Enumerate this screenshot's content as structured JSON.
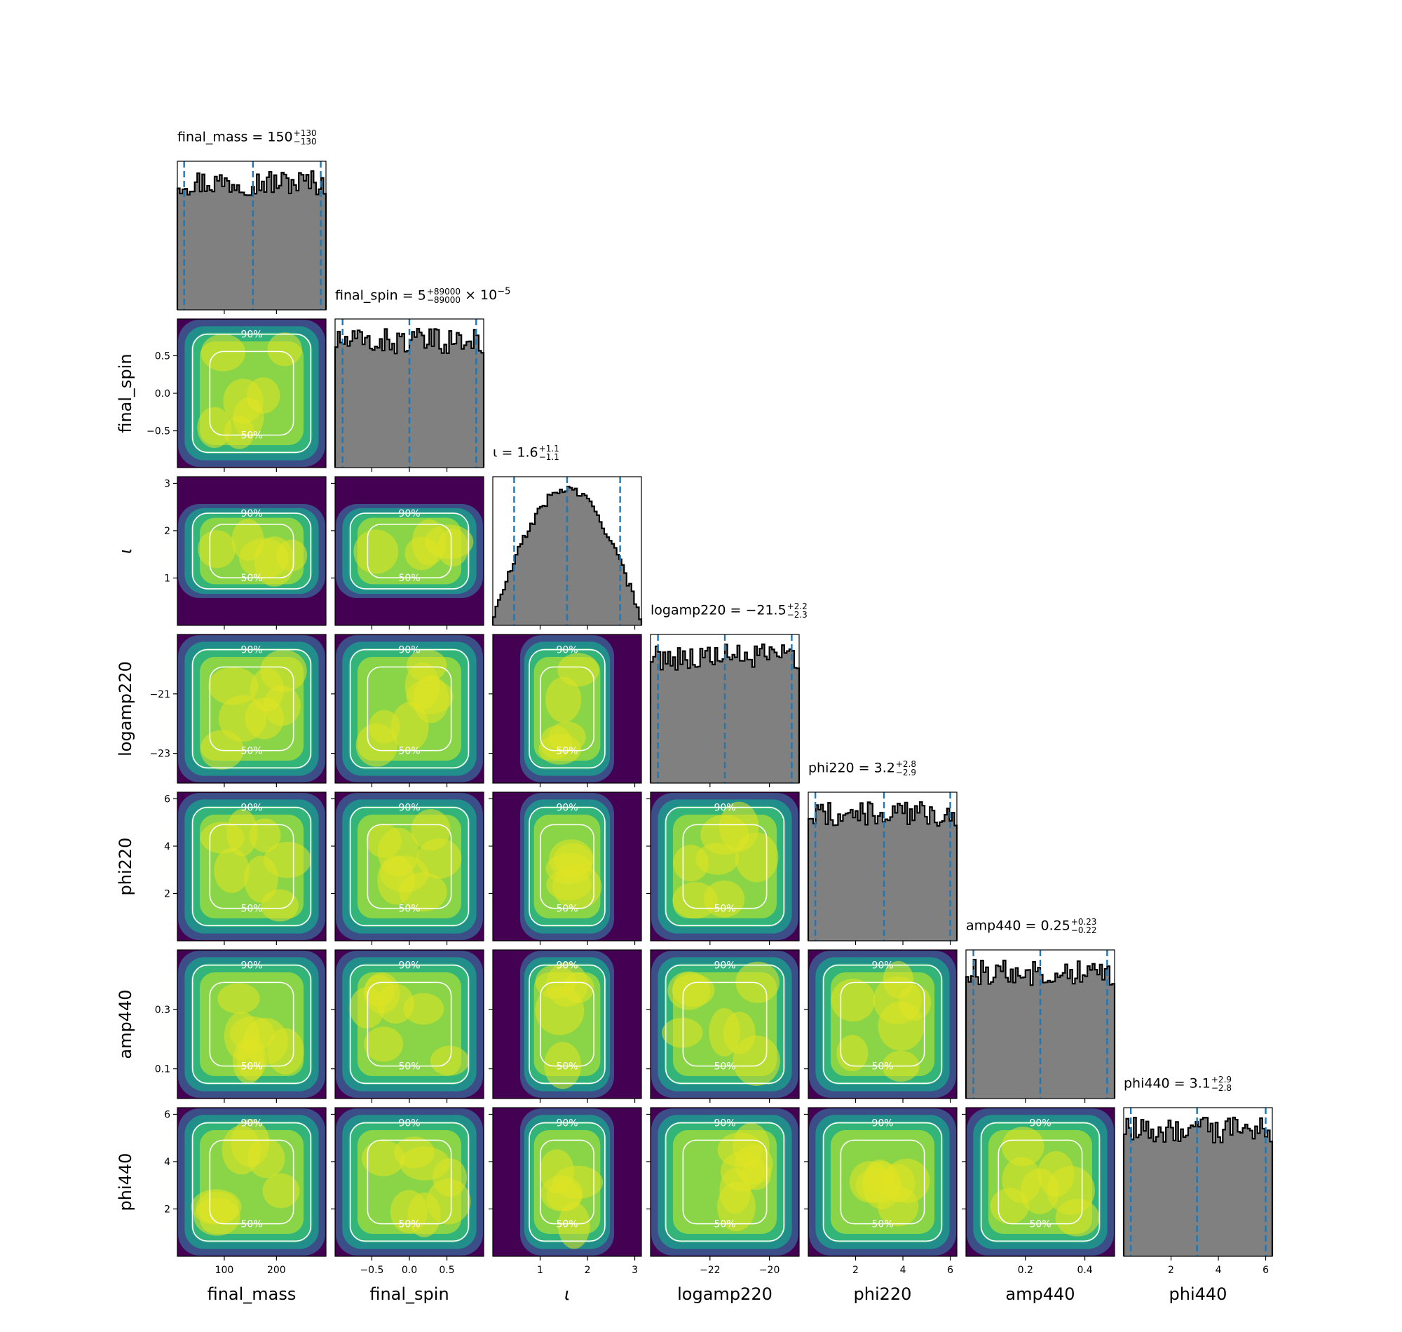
{
  "chart_data": {
    "type": "corner",
    "parameters": [
      {
        "name": "final_mass",
        "label": "final_mass",
        "range": [
          10,
          295
        ],
        "ticks": [
          100,
          200
        ],
        "tick_labels": [
          "100",
          "200"
        ],
        "summary": {
          "median": "150",
          "plus": "+130",
          "minus": "−130",
          "suffix": ""
        },
        "quantiles": [
          23,
          155,
          285
        ],
        "hist_shape": "flat"
      },
      {
        "name": "final_spin",
        "label": "final_spin",
        "range": [
          -0.99,
          0.99
        ],
        "ticks": [
          -0.5,
          0.0,
          0.5
        ],
        "tick_labels": [
          "−0.5",
          "0.0",
          "0.5"
        ],
        "summary": {
          "median": "5",
          "plus": "+89000",
          "minus": "−89000",
          "suffix": "× 10",
          "suffix_exp": "−5"
        },
        "quantiles": [
          -0.89,
          0.0,
          0.89
        ],
        "hist_shape": "flat"
      },
      {
        "name": "iota",
        "label": "ι",
        "range": [
          0.0,
          3.14
        ],
        "ticks": [
          1,
          2,
          3
        ],
        "tick_labels": [
          "1",
          "2",
          "3"
        ],
        "summary": {
          "median": "1.6",
          "plus": "+1.1",
          "minus": "−1.1",
          "suffix": ""
        },
        "quantiles": [
          0.45,
          1.57,
          2.69
        ],
        "hist_shape": "sine"
      },
      {
        "name": "logamp220",
        "label": "logamp220",
        "range": [
          -24.0,
          -19.0
        ],
        "ticks": [
          -23,
          -21
        ],
        "xticks": [
          -22,
          -20
        ],
        "tick_labels": [
          "−23",
          "−21"
        ],
        "xtick_labels": [
          "−22",
          "−20"
        ],
        "summary": {
          "median": "−21.5",
          "plus": "+2.2",
          "minus": "−2.3",
          "suffix": ""
        },
        "quantiles": [
          -23.75,
          -21.5,
          -19.25
        ],
        "hist_shape": "flat"
      },
      {
        "name": "phi220",
        "label": "phi220",
        "range": [
          0.0,
          6.28
        ],
        "ticks": [
          2,
          4,
          6
        ],
        "tick_labels": [
          "2",
          "4",
          "6"
        ],
        "summary": {
          "median": "3.2",
          "plus": "+2.8",
          "minus": "−2.9",
          "suffix": ""
        },
        "quantiles": [
          0.3,
          3.2,
          6.0
        ],
        "hist_shape": "flat"
      },
      {
        "name": "amp440",
        "label": "amp440",
        "range": [
          0.0,
          0.5
        ],
        "ticks": [
          0.1,
          0.3
        ],
        "xticks": [
          0.2,
          0.4
        ],
        "tick_labels": [
          "0.1",
          "0.3"
        ],
        "xtick_labels": [
          "0.2",
          "0.4"
        ],
        "summary": {
          "median": "0.25",
          "plus": "+0.23",
          "minus": "−0.22",
          "suffix": ""
        },
        "quantiles": [
          0.025,
          0.25,
          0.475
        ],
        "hist_shape": "flat"
      },
      {
        "name": "phi440",
        "label": "phi440",
        "range": [
          0.0,
          6.28
        ],
        "ticks": [
          2,
          4,
          6
        ],
        "tick_labels": [
          "2",
          "4",
          "6"
        ],
        "summary": {
          "median": "3.1",
          "plus": "+2.9",
          "minus": "−2.8",
          "suffix": ""
        },
        "quantiles": [
          0.3,
          3.1,
          6.0
        ],
        "hist_shape": "flat"
      }
    ],
    "contour_levels": [
      "50%",
      "90%"
    ],
    "colormap": "viridis",
    "colors": {
      "hist_fill": "#808080",
      "hist_edge": "#000000",
      "quantile_line": "#1f77b4",
      "contour": "#ffffff"
    }
  }
}
